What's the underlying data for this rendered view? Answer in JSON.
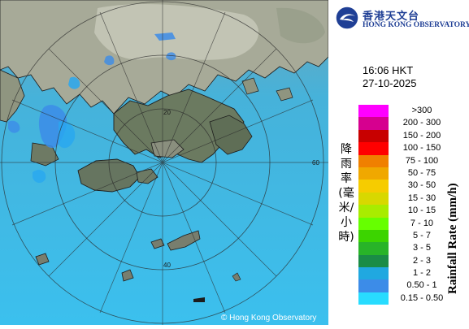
{
  "header": {
    "logo_cn": "香港天文台",
    "logo_en": "HONG KONG OBSERVATORY",
    "logo_icon": "hko-logo-icon"
  },
  "timestamp": {
    "time": "16:06 HKT",
    "date": "27-10-2025"
  },
  "legend": {
    "title_cn": "降雨率(毫米/小時)",
    "title_en": "Rainfall Rate (mm/h)",
    "items": [
      {
        "label": ">300",
        "color": "#ff00ff"
      },
      {
        "label": "200 - 300",
        "color": "#d6008f"
      },
      {
        "label": "150 - 200",
        "color": "#c80000"
      },
      {
        "label": "100 - 150",
        "color": "#ff0000"
      },
      {
        "label": "75 - 100",
        "color": "#f08000"
      },
      {
        "label": "50 - 75",
        "color": "#f0a800"
      },
      {
        "label": "30 - 50",
        "color": "#f6cc00"
      },
      {
        "label": "15 - 30",
        "color": "#d8d800"
      },
      {
        "label": "10 - 15",
        "color": "#a8ec00"
      },
      {
        "label": "7 - 10",
        "color": "#66ff00"
      },
      {
        "label": "5 - 7",
        "color": "#3cd400"
      },
      {
        "label": "3 - 5",
        "color": "#28b428"
      },
      {
        "label": "2 - 3",
        "color": "#1a8c46"
      },
      {
        "label": "1 - 2",
        "color": "#20a8e0"
      },
      {
        "label": "0.50 - 1",
        "color": "#3c8ce8"
      },
      {
        "label": "0.15 - 0.50",
        "color": "#28dcff"
      }
    ]
  },
  "map": {
    "range_labels": [
      "20",
      "40",
      "60"
    ],
    "copyright": "© Hong Kong Observatory",
    "colors": {
      "sea": "#3cb6e6",
      "land": "#78806c",
      "land_light": "#b4b6a6",
      "rain_light": "#28dcff",
      "rain_medium": "#3c8ce8"
    }
  }
}
